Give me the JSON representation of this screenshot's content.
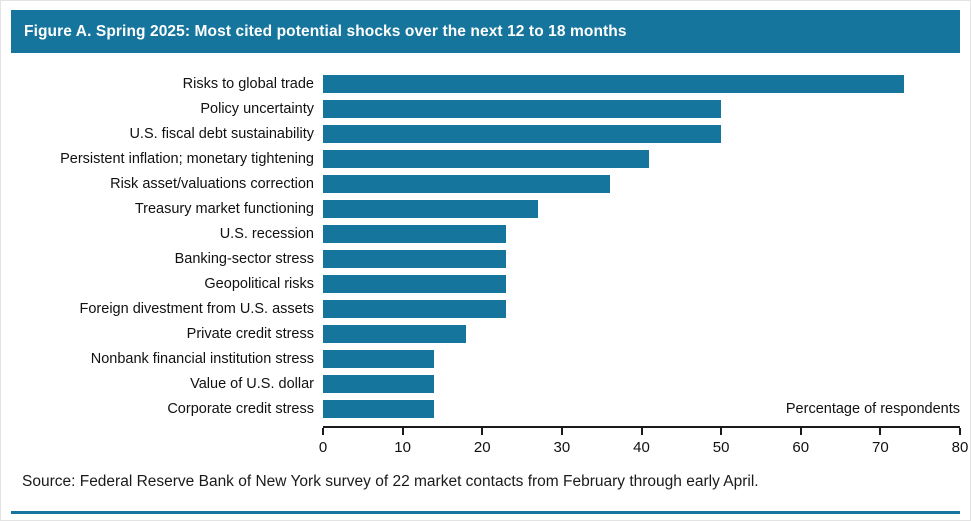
{
  "header": {
    "title": "Figure A. Spring 2025: Most cited potential shocks over the next 12 to 18 months"
  },
  "chart_data": {
    "type": "bar",
    "orientation": "horizontal",
    "title": "Figure A. Spring 2025: Most cited potential shocks over the next 12 to 18 months",
    "categories": [
      "Risks to global trade",
      "Policy uncertainty",
      "U.S. fiscal debt sustainability",
      "Persistent inflation; monetary tightening",
      "Risk asset/valuations correction",
      "Treasury market functioning",
      "U.S. recession",
      "Banking-sector stress",
      "Geopolitical risks",
      "Foreign divestment from U.S. assets",
      "Private credit stress",
      "Nonbank financial institution stress",
      "Value of U.S. dollar",
      "Corporate credit stress"
    ],
    "values": [
      73,
      50,
      50,
      41,
      36,
      27,
      23,
      23,
      23,
      23,
      18,
      14,
      14,
      14
    ],
    "xlabel": "Percentage of respondents",
    "ylabel": "",
    "xlim": [
      0,
      80
    ],
    "xticks": [
      0,
      10,
      20,
      30,
      40,
      50,
      60,
      70,
      80
    ],
    "grid": false,
    "legend": false,
    "bar_color": "#15759d"
  },
  "source": {
    "text": "Source: Federal Reserve Bank of New York survey of 22 market contacts from February through early April."
  },
  "colors": {
    "accent": "#15759d",
    "header_text": "#ffffff",
    "axis": "#1a1a1a"
  }
}
